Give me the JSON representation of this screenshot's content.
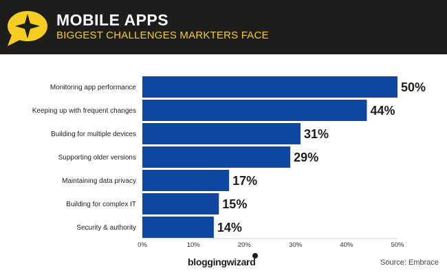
{
  "header": {
    "title": "MOBILE APPS",
    "subtitle": "BIGGEST CHALLENGES MARKTERS FACE"
  },
  "colors": {
    "bar": "#0d47a1",
    "header_bg": "#1d1d1b",
    "accent": "#f7cd22"
  },
  "chart_data": {
    "type": "bar",
    "orientation": "horizontal",
    "categories": [
      "Monitoring app performance",
      "Keeping up with frequent changes",
      "Building for multiple devices",
      "Supporting older versions",
      "Maintaining data privacy",
      "Building for complex IT",
      "Security & authority"
    ],
    "values": [
      50,
      44,
      31,
      29,
      17,
      15,
      14
    ],
    "value_labels": [
      "50%",
      "44%",
      "31%",
      "29%",
      "17%",
      "15%",
      "14%"
    ],
    "xlim": [
      0,
      50
    ],
    "xticks": [
      0,
      10,
      20,
      30,
      40,
      50
    ],
    "xtick_labels": [
      "0%",
      "10%",
      "20%",
      "30%",
      "40%",
      "50%"
    ],
    "grid": false,
    "legend": "none"
  },
  "footer": {
    "brand": "bloggingwizard",
    "source": "Source: Embrace"
  }
}
